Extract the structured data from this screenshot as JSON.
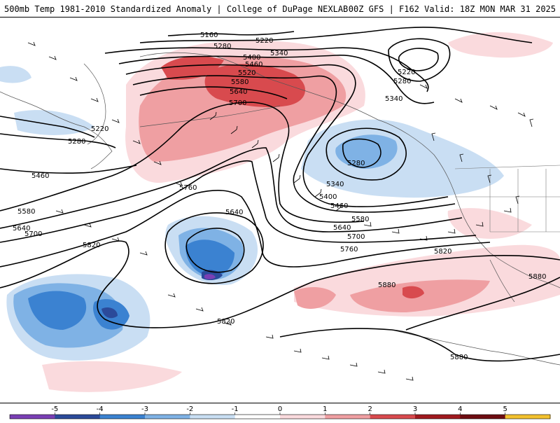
{
  "header": {
    "title_left": "500mb Temp 1981-2010 Standardized Anomaly | College of DuPage NEXLAB",
    "title_right": "00Z GFS | F162 Valid: 18Z MON MAR 31 2025"
  },
  "colorbar": {
    "ticks": [
      "-5",
      "-4",
      "-3",
      "-2",
      "-1",
      "0",
      "1",
      "2",
      "3",
      "4",
      "5"
    ],
    "colors": [
      "#7a3fb5",
      "#2b4a9a",
      "#3b82d1",
      "#7fb2e5",
      "#c9def3",
      "#ffffff",
      "#fadadd",
      "#ef9fa2",
      "#d84a4e",
      "#a01a1f",
      "#6e0d12",
      "#f2c12e"
    ]
  },
  "contours": {
    "labels": [
      "5160",
      "5220",
      "5280",
      "5340",
      "5400",
      "5460",
      "5520",
      "5580",
      "5640",
      "5700",
      "5220",
      "5280",
      "5460",
      "5580",
      "5640",
      "5700",
      "5760",
      "5640",
      "5820",
      "5220",
      "5280",
      "5340",
      "5280",
      "5340",
      "5400",
      "5460",
      "5580",
      "5640",
      "5700",
      "5760",
      "5820",
      "5880",
      "5880",
      "5820",
      "5880"
    ]
  },
  "map": {
    "region": "North Pacific / Alaska / Western North America",
    "features": [
      "geopotential-height-contours",
      "wind-barbs",
      "temperature-anomaly-shading",
      "coastlines"
    ]
  }
}
